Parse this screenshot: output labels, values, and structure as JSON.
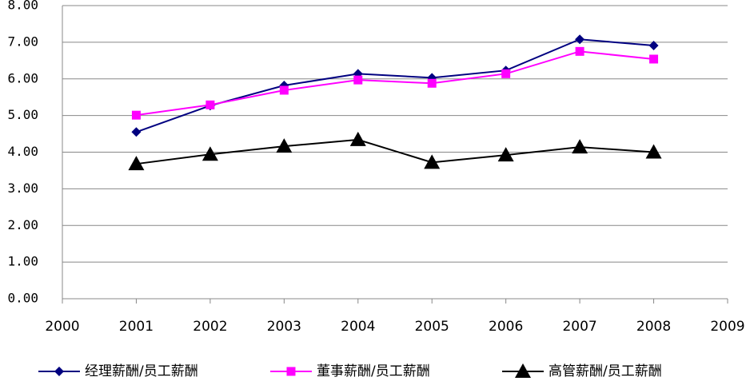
{
  "chart_data": {
    "type": "line",
    "x": [
      2001,
      2002,
      2003,
      2004,
      2005,
      2006,
      2007,
      2008
    ],
    "xlim": [
      2000,
      2009
    ],
    "xticks": [
      2000,
      2001,
      2002,
      2003,
      2004,
      2005,
      2006,
      2007,
      2008,
      2009
    ],
    "ylim": [
      0,
      8
    ],
    "yticks": [
      {
        "value": 0,
        "label": "0.00"
      },
      {
        "value": 1,
        "label": "1.00"
      },
      {
        "value": 2,
        "label": "2.00"
      },
      {
        "value": 3,
        "label": "3.00"
      },
      {
        "value": 4,
        "label": "4.00"
      },
      {
        "value": 5,
        "label": "5.00"
      },
      {
        "value": 6,
        "label": "6.00"
      },
      {
        "value": 7,
        "label": "7.00"
      },
      {
        "value": 8,
        "label": "8.00"
      }
    ],
    "grid": true,
    "legend": "bottom",
    "series": [
      {
        "name": "经理薪酬/员工薪酬",
        "color": "#000080",
        "marker": "diamond",
        "values": [
          4.55,
          5.27,
          5.82,
          6.14,
          6.03,
          6.23,
          7.08,
          6.91
        ]
      },
      {
        "name": "董事薪酬/员工薪酬",
        "color": "#ff00ff",
        "marker": "square",
        "values": [
          5.01,
          5.29,
          5.69,
          5.97,
          5.88,
          6.14,
          6.75,
          6.54
        ]
      },
      {
        "name": "高管薪酬/员工薪酬",
        "color": "#000000",
        "marker": "triangle",
        "values": [
          3.68,
          3.94,
          4.16,
          4.34,
          3.72,
          3.92,
          4.14,
          4.0
        ]
      }
    ]
  }
}
